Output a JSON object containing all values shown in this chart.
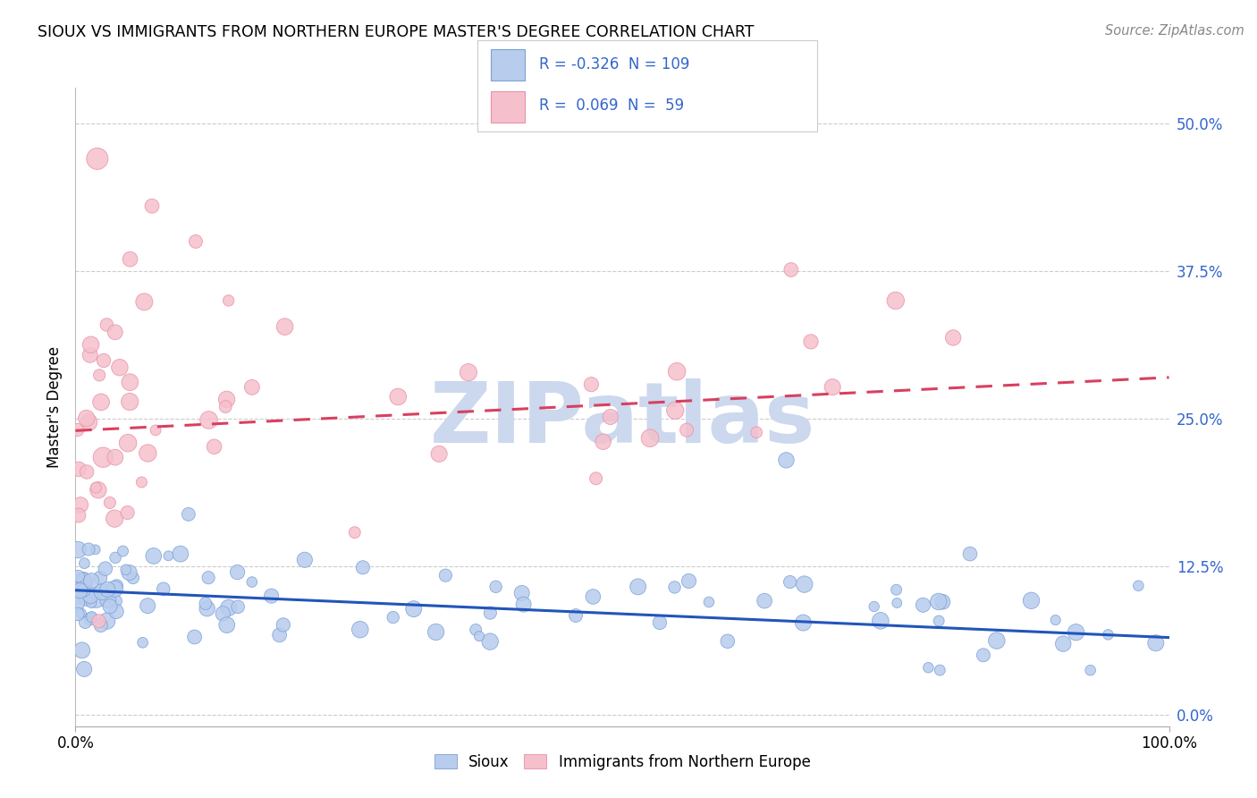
{
  "title": "SIOUX VS IMMIGRANTS FROM NORTHERN EUROPE MASTER'S DEGREE CORRELATION CHART",
  "source": "Source: ZipAtlas.com",
  "ylabel": "Master's Degree",
  "ytick_vals": [
    0.0,
    12.5,
    25.0,
    37.5,
    50.0
  ],
  "xlim": [
    0,
    100
  ],
  "ylim": [
    -1,
    53
  ],
  "blue_fill": "#b8ccee",
  "blue_edge": "#7aa0d4",
  "pink_fill": "#f5c0cc",
  "pink_edge": "#e890a8",
  "blue_line_color": "#2255bb",
  "pink_line_color": "#d84060",
  "legend_text_color": "#3366cc",
  "watermark_color": "#ccd8ee",
  "watermark": "ZIPatlas",
  "blue_R": -0.326,
  "blue_N": 109,
  "pink_R": 0.069,
  "pink_N": 59,
  "blue_trend_y0": 10.5,
  "blue_trend_y1": 6.5,
  "pink_trend_y0": 24.0,
  "pink_trend_y1": 28.5,
  "legend_label_blue": "Sioux",
  "legend_label_pink": "Immigrants from Northern Europe"
}
